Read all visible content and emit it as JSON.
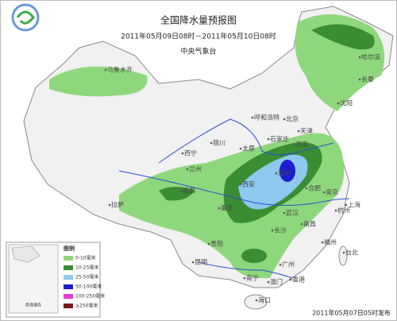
{
  "header": {
    "title": "全国降水量预报图",
    "period": "2011年05月09日08时－2011年05月10日08时",
    "issuer": "中央气象台"
  },
  "cities": [
    "哈尔滨",
    "长春",
    "沈阳",
    "乌鲁木齐",
    "呼和浩特",
    "北京",
    "天津",
    "石家庄",
    "太原",
    "济南",
    "银川",
    "西宁",
    "兰州",
    "郑州",
    "西安",
    "合肥",
    "南京",
    "上海",
    "成都",
    "武汉",
    "杭州",
    "拉萨",
    "重庆",
    "长沙",
    "南昌",
    "贵阳",
    "福州",
    "台北",
    "昆明",
    "广州",
    "南宁",
    "香港",
    "澳门",
    "海口"
  ],
  "legend": {
    "title": "图例",
    "items": [
      "0-10毫米",
      "10-25毫米",
      "25-50毫米",
      "50-100毫米",
      "100-250毫米",
      "≥250毫米"
    ],
    "inset": "南海诸岛"
  },
  "footer": {
    "issued": "2011年05月07日05时发布"
  }
}
